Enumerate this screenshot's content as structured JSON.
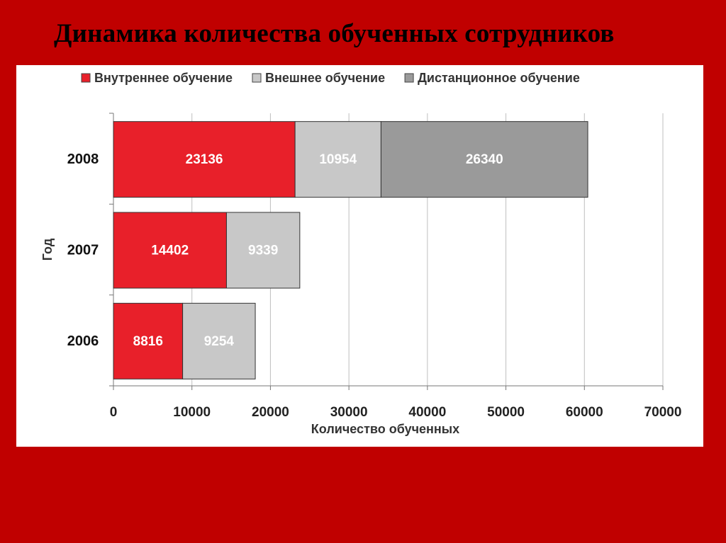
{
  "slide": {
    "title": "Динамика количества обученных сотрудников"
  },
  "colors": {
    "background": "#c00000",
    "panel": "#ffffff",
    "internal": "#e8202a",
    "external": "#c8c8c8",
    "distance": "#9a9a9a"
  },
  "chart_data": {
    "type": "bar",
    "orientation": "horizontal",
    "stacked": true,
    "categories": [
      "2008",
      "2007",
      "2006"
    ],
    "series": [
      {
        "name": "Внутреннее обучение",
        "values": [
          23136,
          14402,
          8816
        ]
      },
      {
        "name": "Внешнее обучение",
        "values": [
          10954,
          9339,
          9254
        ]
      },
      {
        "name": "Дистанционное обучение",
        "values": [
          26340,
          null,
          null
        ]
      }
    ],
    "data_labels": [
      [
        "23136",
        "10954",
        "26340"
      ],
      [
        "14402",
        "9339",
        ""
      ],
      [
        "8816",
        "9254",
        ""
      ]
    ],
    "xlabel": "Количество обученных",
    "ylabel": "Год",
    "xlim": [
      0,
      70000
    ],
    "xticks": [
      "0",
      "10000",
      "20000",
      "30000",
      "40000",
      "50000",
      "60000",
      "70000"
    ],
    "grid": "vertical",
    "legend": "top"
  }
}
